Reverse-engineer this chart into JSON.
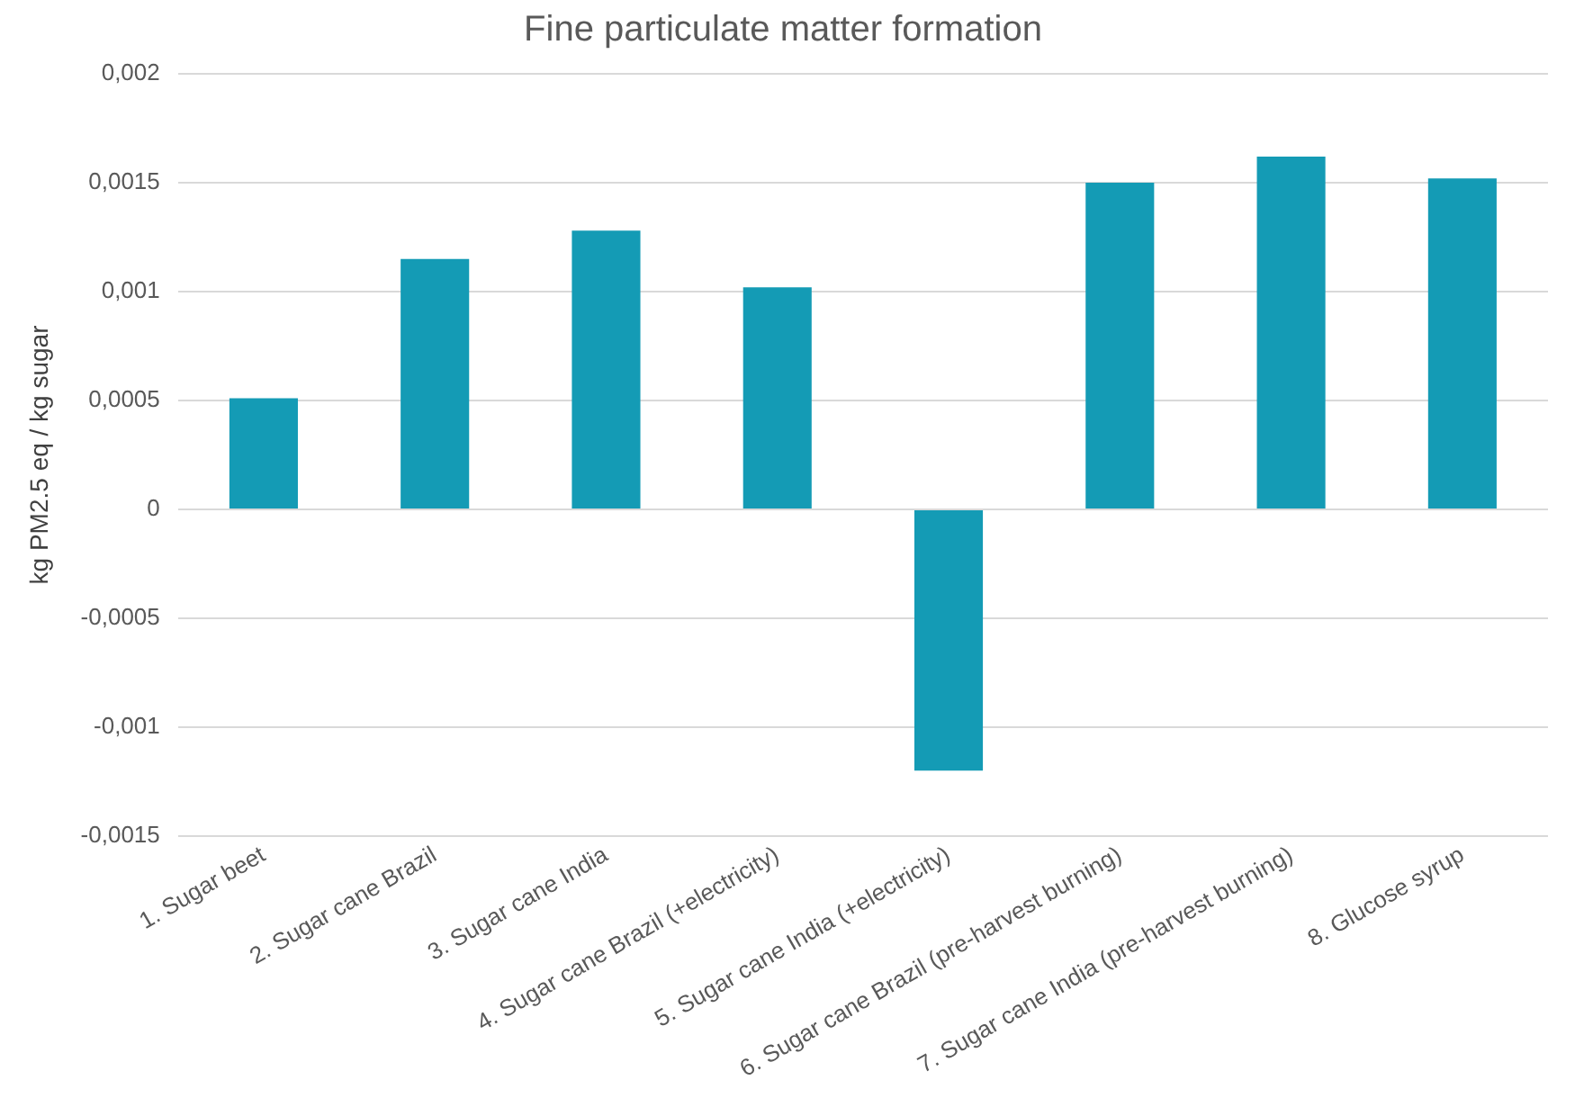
{
  "chart_data": {
    "type": "bar",
    "title": "Fine particulate matter formation",
    "ylabel": "kg PM2.5 eq / kg sugar",
    "categories": [
      "1. Sugar beet",
      "2. Sugar cane Brazil",
      "3. Sugar cane India",
      "4. Sugar cane Brazil (+electricity)",
      "5. Sugar cane India (+electricity)",
      "6. Sugar cane Brazil (pre-harvest burning)",
      "7. Sugar cane India (pre-harvest burning)",
      "8. Glucose syrup"
    ],
    "values": [
      0.00051,
      0.00115,
      0.00128,
      0.00102,
      -0.0012,
      0.0015,
      0.00162,
      0.00152
    ],
    "color": "#149bb5",
    "ylim": [
      -0.0015,
      0.002
    ],
    "yticks": [
      {
        "value": -0.0015,
        "label": "-0,0015"
      },
      {
        "value": -0.001,
        "label": "-0,001"
      },
      {
        "value": -0.0005,
        "label": "-0,0005"
      },
      {
        "value": 0,
        "label": "0"
      },
      {
        "value": 0.0005,
        "label": "0,0005"
      },
      {
        "value": 0.001,
        "label": "0,001"
      },
      {
        "value": 0.0015,
        "label": "0,0015"
      },
      {
        "value": 0.002,
        "label": "0,002"
      }
    ],
    "grid": "y",
    "legend": false
  }
}
